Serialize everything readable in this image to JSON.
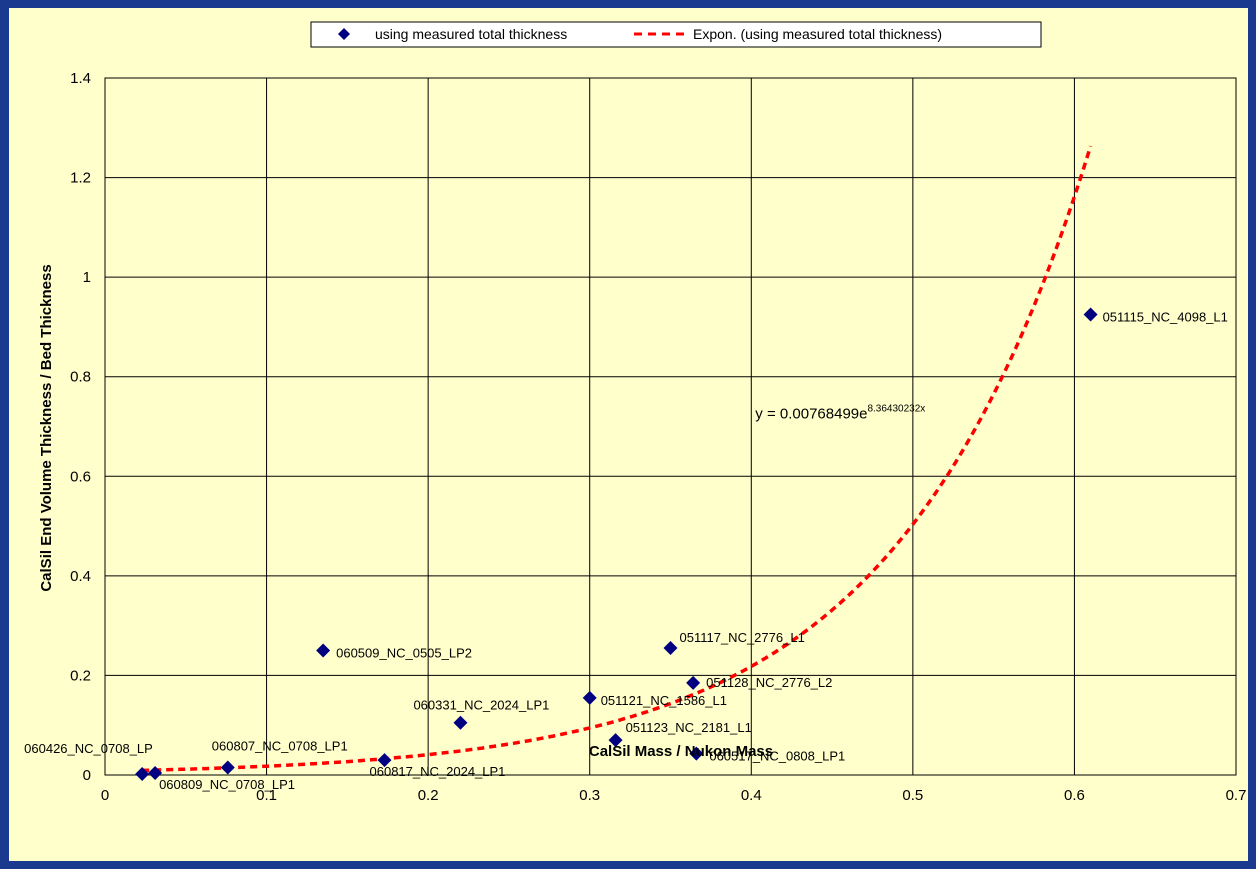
{
  "chart_data": {
    "type": "scatter",
    "xlabel": "CalSil Mass / Nukon Mass",
    "ylabel": "CalSil End Volume Thickness / Bed Thickness",
    "xlim": [
      0,
      0.7
    ],
    "ylim": [
      0,
      1.4
    ],
    "x_ticks": [
      "0",
      "0.1",
      "0.2",
      "0.3",
      "0.4",
      "0.5",
      "0.6",
      "0.7"
    ],
    "y_ticks": [
      "0",
      "0.2",
      "0.4",
      "0.6",
      "0.8",
      "1",
      "1.2",
      "1.4"
    ],
    "grid": true,
    "legend_position": "top",
    "series": [
      {
        "name": "using measured total thickness",
        "color": "#000080",
        "marker": "diamond",
        "points": [
          {
            "x": 0.023,
            "y": 0.002,
            "label": "060426_NC_0708_LP"
          },
          {
            "x": 0.031,
            "y": 0.004,
            "label": "060809_NC_0708_LP1"
          },
          {
            "x": 0.076,
            "y": 0.015,
            "label": "060807_NC_0708_LP1"
          },
          {
            "x": 0.135,
            "y": 0.25,
            "label": "060509_NC_0505_LP2"
          },
          {
            "x": 0.173,
            "y": 0.03,
            "label": "060817_NC_2024_LP1"
          },
          {
            "x": 0.22,
            "y": 0.105,
            "label": "060331_NC_2024_LP1"
          },
          {
            "x": 0.3,
            "y": 0.155,
            "label": "051121_NC_1586_L1"
          },
          {
            "x": 0.316,
            "y": 0.07,
            "label": "051123_NC_2181_L1"
          },
          {
            "x": 0.35,
            "y": 0.255,
            "label": "051117_NC_2776_L1"
          },
          {
            "x": 0.364,
            "y": 0.185,
            "label": "051128_NC_2776_L2"
          },
          {
            "x": 0.366,
            "y": 0.043,
            "label": "060517_NC_0808_LP1"
          },
          {
            "x": 0.61,
            "y": 0.925,
            "label": "051115_NC_4098_L1"
          }
        ]
      },
      {
        "name": "Expon. (using measured total thickness)",
        "color": "#ff0000",
        "style": "dashed",
        "type": "trendline",
        "fit": "exponential",
        "coef_a": 0.00768499,
        "coef_b": 8.36430232,
        "x_range": [
          0.023,
          0.61
        ]
      }
    ],
    "annotations": [
      {
        "text_base": "y = 0.00768499e",
        "text_sup": "8.36430232x",
        "x": 0.4,
        "y": 0.72
      }
    ]
  }
}
